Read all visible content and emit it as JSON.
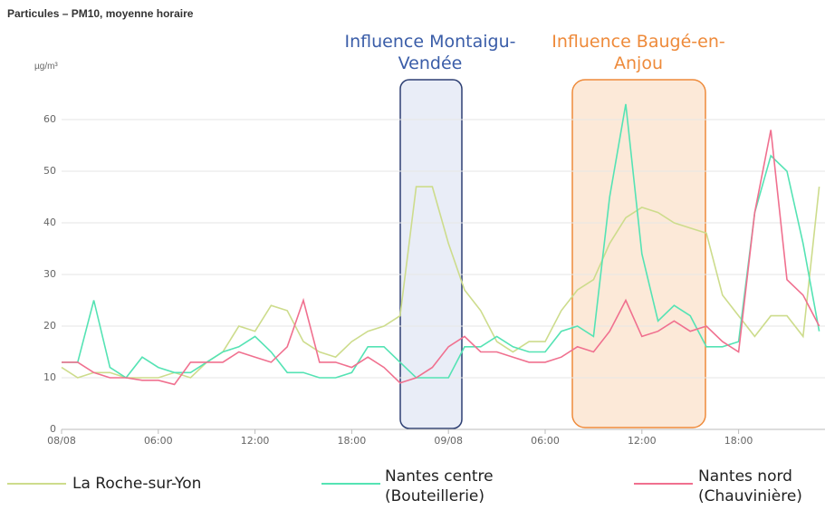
{
  "chart_data": {
    "type": "line",
    "title": "Particules – PM10, moyenne horaire",
    "y_label": "µg/m³",
    "categories": [
      "08/08",
      null,
      null,
      null,
      null,
      null,
      "06:00",
      null,
      null,
      null,
      null,
      null,
      "12:00",
      null,
      null,
      null,
      null,
      null,
      "18:00",
      null,
      null,
      null,
      null,
      null,
      "09/08",
      null,
      null,
      null,
      null,
      null,
      "06:00",
      null,
      null,
      null,
      null,
      null,
      "12:00",
      null,
      null,
      null,
      null,
      null,
      "18:00",
      null,
      null,
      null,
      null,
      null
    ],
    "series": [
      {
        "name": "La Roche-sur-Yon",
        "color": "#cddc8c",
        "values": [
          12,
          10,
          11,
          11,
          10,
          10,
          10,
          11,
          10,
          13,
          15,
          20,
          19,
          24,
          23,
          17,
          15,
          14,
          17,
          19,
          20,
          22,
          47,
          47,
          36,
          27,
          23,
          17,
          15,
          17,
          17,
          23,
          27,
          29,
          36,
          41,
          43,
          42,
          40,
          39,
          38,
          26,
          22,
          18,
          22,
          22,
          18,
          47
        ]
      },
      {
        "name": "Nantes centre (Bouteillerie)",
        "color": "#55e3b4",
        "values": [
          13,
          13,
          25,
          12,
          10,
          14,
          12,
          11,
          11,
          13,
          15,
          16,
          18,
          15,
          11,
          11,
          10,
          10,
          11,
          16,
          16,
          13,
          10,
          10,
          10,
          16,
          16,
          18,
          16,
          15,
          15,
          19,
          20,
          18,
          45,
          63,
          34,
          21,
          24,
          22,
          16,
          16,
          17,
          42,
          53,
          50,
          36,
          19
        ]
      },
      {
        "name": "Nantes nord (Chauvinière)",
        "color": "#f0708f",
        "values": [
          13,
          13,
          11,
          10,
          10,
          9.5,
          9.5,
          8.7,
          13,
          13,
          13,
          15,
          14,
          13,
          16,
          25,
          13,
          13,
          12,
          14,
          12,
          9,
          10,
          12,
          16,
          18,
          15,
          15,
          14,
          13,
          13,
          14,
          16,
          15,
          19,
          25,
          18,
          19,
          21,
          19,
          20,
          17,
          15,
          42,
          58,
          29,
          26,
          20
        ]
      }
    ],
    "annotations": [
      {
        "text": "Influence Montaigu-Vendée",
        "color": "#3a5da8"
      },
      {
        "text": "Influence Baugé-en-Anjou",
        "color": "#ee8a3a"
      }
    ],
    "ylim": [
      0,
      65
    ],
    "yticks": [
      0,
      10,
      20,
      30,
      40,
      50,
      60
    ],
    "grid": true
  }
}
